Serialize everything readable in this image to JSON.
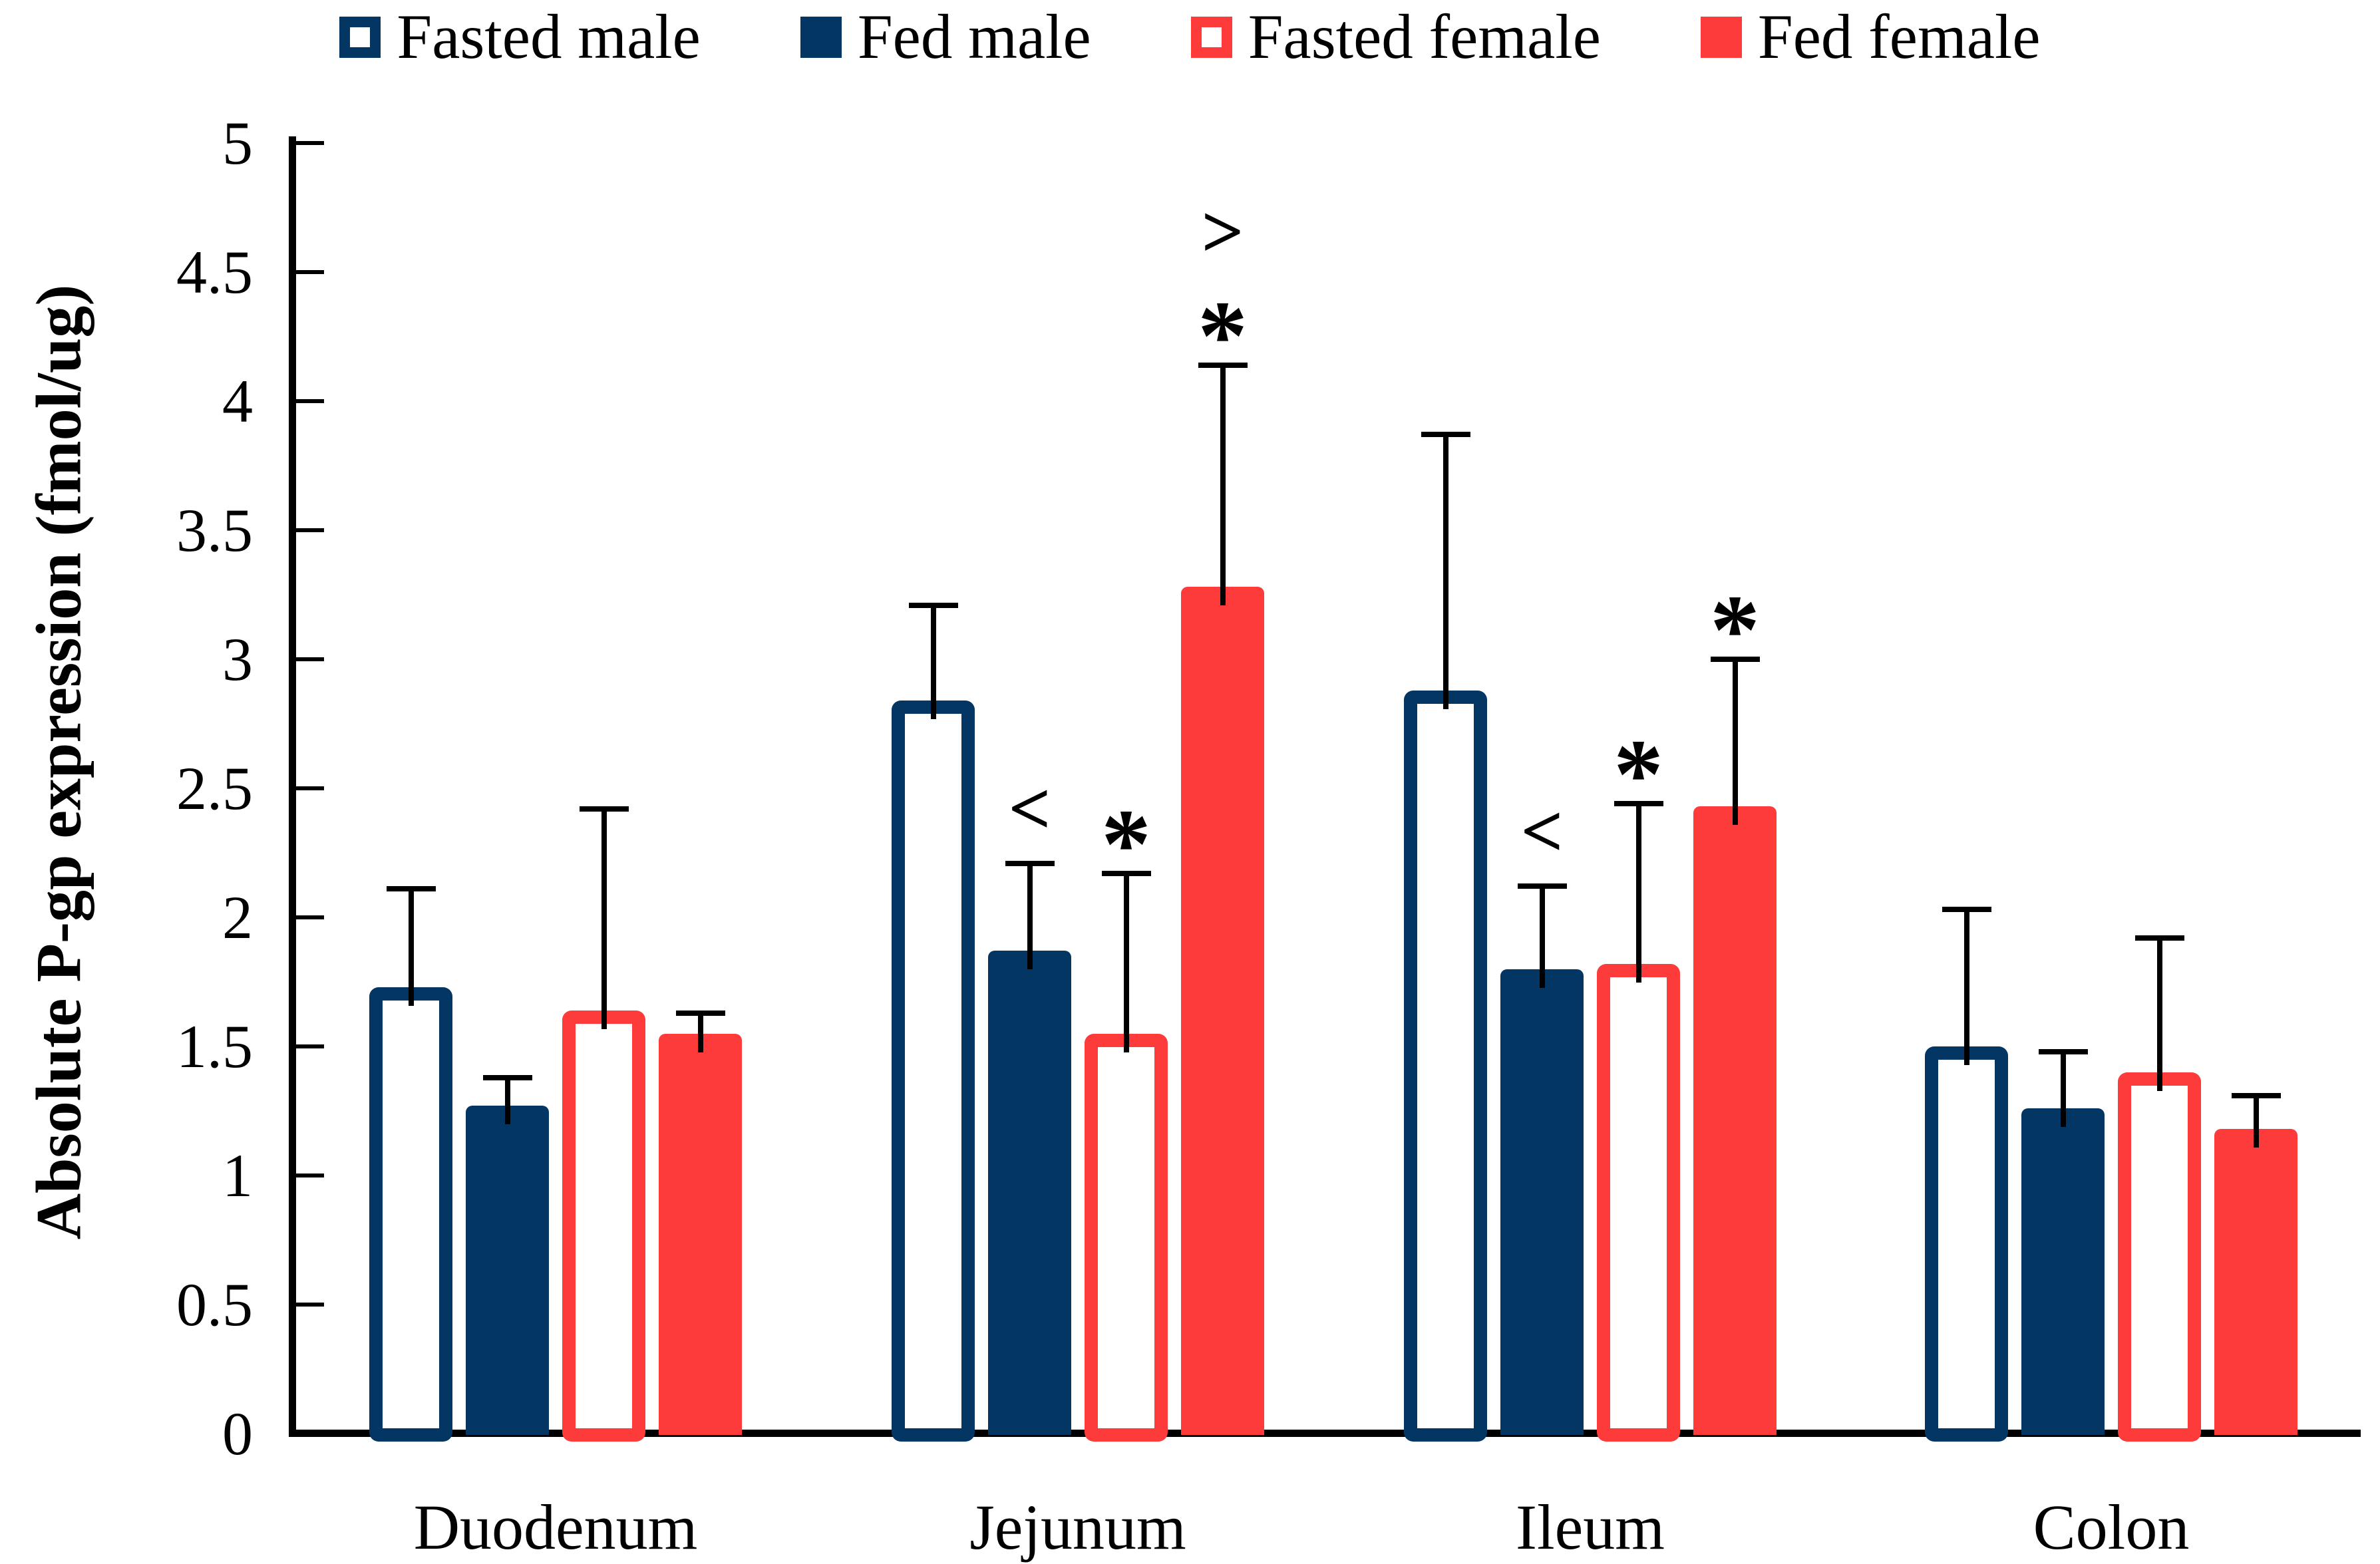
{
  "chart_data": {
    "type": "bar",
    "title": "",
    "ylabel": "Absolute P-gp expression (fmol/ug)",
    "xlabel": "",
    "ylim": [
      0,
      5
    ],
    "ytick_step": 0.5,
    "ytick_labels": [
      "0",
      "0.5",
      "1",
      "1.5",
      "2",
      "2.5",
      "3",
      "3.5",
      "4",
      "4.5",
      "5"
    ],
    "categories": [
      "Duodenum",
      "Jejunum",
      "Ileum",
      "Colon"
    ],
    "grid": false,
    "legend_position": "top",
    "error_bars": "upper standard deviation whiskers",
    "colors": {
      "navy": "#033663",
      "red": "#fd3b3b",
      "white": "#ffffff",
      "axis": "#000000"
    },
    "series": [
      {
        "name": "Fasted male",
        "style": "outline",
        "color": "#033663",
        "fill": "#ffffff",
        "values": [
          1.73,
          2.84,
          2.88,
          1.5
        ],
        "errors": [
          0.38,
          0.37,
          0.99,
          0.53
        ]
      },
      {
        "name": "Fed male",
        "style": "solid",
        "color": "#033663",
        "fill": "#033663",
        "values": [
          1.27,
          1.87,
          1.8,
          1.26
        ],
        "errors": [
          0.11,
          0.34,
          0.32,
          0.22
        ]
      },
      {
        "name": "Fasted female",
        "style": "outline",
        "color": "#fd3b3b",
        "fill": "#ffffff",
        "values": [
          1.64,
          1.55,
          1.82,
          1.4
        ],
        "errors": [
          0.78,
          0.62,
          0.62,
          0.52
        ]
      },
      {
        "name": "Fed female",
        "style": "solid",
        "color": "#fd3b3b",
        "fill": "#fd3b3b",
        "values": [
          1.55,
          3.28,
          2.43,
          1.18
        ],
        "errors": [
          0.08,
          0.86,
          0.57,
          0.13
        ]
      }
    ],
    "annotations": [
      {
        "category": "Jejunum",
        "series": "Fed male",
        "symbols": [
          "<"
        ]
      },
      {
        "category": "Jejunum",
        "series": "Fasted female",
        "symbols": [
          "*"
        ]
      },
      {
        "category": "Jejunum",
        "series": "Fed female",
        "symbols": [
          ">",
          "*"
        ]
      },
      {
        "category": "Ileum",
        "series": "Fed male",
        "symbols": [
          "<"
        ]
      },
      {
        "category": "Ileum",
        "series": "Fasted female",
        "symbols": [
          "*"
        ]
      },
      {
        "category": "Ileum",
        "series": "Fed female",
        "symbols": [
          "*"
        ]
      }
    ]
  }
}
